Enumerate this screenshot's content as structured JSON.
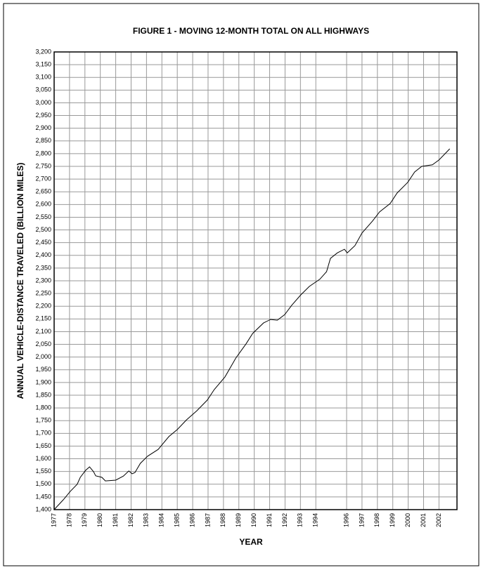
{
  "chart_data": {
    "type": "line",
    "title": "FIGURE 1 - MOVING 12-MONTH TOTAL ON ALL HIGHWAYS",
    "x_label": "YEAR",
    "y_label": "ANNUAL VEHICLE-DISTANCE TRAVELED (BILLION MILES)",
    "grid": true,
    "series": [
      {
        "name": "Moving 12-month total",
        "color": "#000000",
        "x": [
          1977.0,
          1977.6,
          1978.05,
          1978.5,
          1978.7,
          1979.05,
          1979.3,
          1979.56,
          1979.7,
          1980.1,
          1980.33,
          1981.0,
          1981.5,
          1981.85,
          1982.07,
          1982.25,
          1982.6,
          1983.07,
          1983.76,
          1984.45,
          1985.0,
          1985.6,
          1986.27,
          1986.95,
          1987.4,
          1988.1,
          1988.8,
          1989.47,
          1989.9,
          1990.6,
          1991.06,
          1991.5,
          1991.98,
          1992.43,
          1993.03,
          1993.58,
          1994.26,
          1994.7,
          1994.95,
          1995.4,
          1995.86,
          1996.04,
          1996.54,
          1997.0,
          1997.68,
          1998.14,
          1998.83,
          1999.28,
          1999.97,
          2000.42,
          2000.88,
          2001.57,
          2002.0,
          2002.7
        ],
        "values": [
          1400,
          1439,
          1472,
          1500,
          1527,
          1555,
          1568,
          1549,
          1533,
          1527,
          1513,
          1516,
          1532,
          1552,
          1541,
          1546,
          1582,
          1610,
          1637,
          1687,
          1715,
          1753,
          1789,
          1831,
          1872,
          1922,
          1996,
          2052,
          2093,
          2134,
          2148,
          2145,
          2167,
          2203,
          2245,
          2278,
          2306,
          2336,
          2388,
          2410,
          2424,
          2410,
          2438,
          2488,
          2535,
          2571,
          2604,
          2645,
          2687,
          2728,
          2750,
          2756,
          2775,
          2819
        ]
      }
    ],
    "xlim": [
      1977,
      2003.17
    ],
    "xticks": [
      1977,
      1978,
      1979,
      1980,
      1981,
      1982,
      1983,
      1984,
      1985,
      1986,
      1987,
      1988,
      1989,
      1990,
      1991,
      1992,
      1993,
      1994,
      1996,
      1997,
      1998,
      1999,
      2000,
      2001,
      2002
    ],
    "ylim": [
      1400,
      3200
    ],
    "yticks": [
      {
        "value": 1400,
        "label": "1,400"
      },
      {
        "value": 1450,
        "label": "1,450"
      },
      {
        "value": 1500,
        "label": "1,500"
      },
      {
        "value": 1550,
        "label": "1,550"
      },
      {
        "value": 1600,
        "label": "1,600"
      },
      {
        "value": 1650,
        "label": "1,650"
      },
      {
        "value": 1700,
        "label": "1,700"
      },
      {
        "value": 1750,
        "label": "1,750"
      },
      {
        "value": 1800,
        "label": "1,800"
      },
      {
        "value": 1850,
        "label": "1,850"
      },
      {
        "value": 1900,
        "label": "1,900"
      },
      {
        "value": 1950,
        "label": "1,950"
      },
      {
        "value": 2000,
        "label": "2,000"
      },
      {
        "value": 2050,
        "label": "2,050"
      },
      {
        "value": 2100,
        "label": "2,100"
      },
      {
        "value": 2150,
        "label": "2,150"
      },
      {
        "value": 2200,
        "label": "2,200"
      },
      {
        "value": 2250,
        "label": "2,250"
      },
      {
        "value": 2300,
        "label": "2,300"
      },
      {
        "value": 2350,
        "label": "2,350"
      },
      {
        "value": 2400,
        "label": "2,400"
      },
      {
        "value": 2450,
        "label": "2,450"
      },
      {
        "value": 2500,
        "label": "2,500"
      },
      {
        "value": 2550,
        "label": "2,550"
      },
      {
        "value": 2600,
        "label": "2,600"
      },
      {
        "value": 2650,
        "label": "2,650"
      },
      {
        "value": 2700,
        "label": "2,700"
      },
      {
        "value": 2750,
        "label": "2,750"
      },
      {
        "value": 2800,
        "label": "2,800"
      },
      {
        "value": 2850,
        "label": "2,850"
      },
      {
        "value": 2900,
        "label": "2,900"
      },
      {
        "value": 2950,
        "label": "2,950"
      },
      {
        "value": 3000,
        "label": "3,000"
      },
      {
        "value": 3050,
        "label": "3,050"
      },
      {
        "value": 3100,
        "label": "3,100"
      },
      {
        "value": 3150,
        "label": "3,150"
      },
      {
        "value": 3200,
        "label": "3,200"
      }
    ]
  }
}
